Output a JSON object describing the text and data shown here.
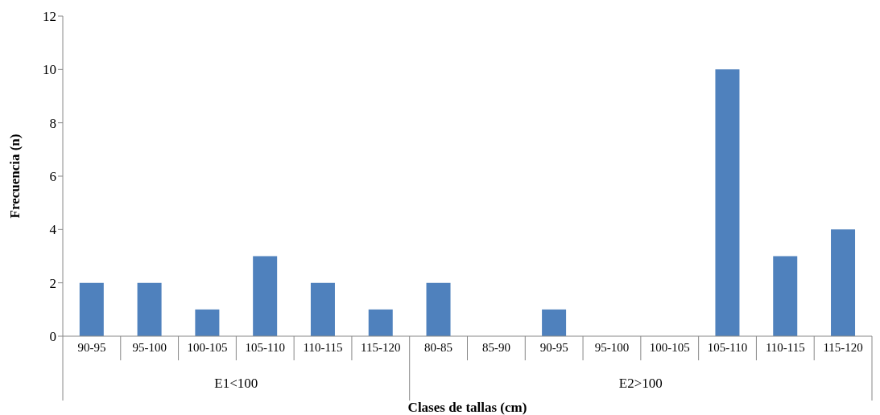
{
  "chart_data": {
    "type": "bar",
    "xlabel": "Clases de tallas (cm)",
    "ylabel": "Frecuencia (n)",
    "categories": [
      "90-95",
      "95-100",
      "100-105",
      "105-110",
      "110-115",
      "115-120",
      "80-85",
      "85-90",
      "90-95",
      "95-100",
      "100-105",
      "105-110",
      "110-115",
      "115-120"
    ],
    "values": [
      2,
      2,
      1,
      3,
      2,
      1,
      2,
      0,
      1,
      0,
      0,
      10,
      3,
      4
    ],
    "color": "#4f81bd",
    "ylim": [
      0,
      12
    ],
    "yticks": [
      0,
      2,
      4,
      6,
      8,
      10,
      12
    ],
    "annotations": [
      "E1<100",
      "E2>100"
    ]
  }
}
